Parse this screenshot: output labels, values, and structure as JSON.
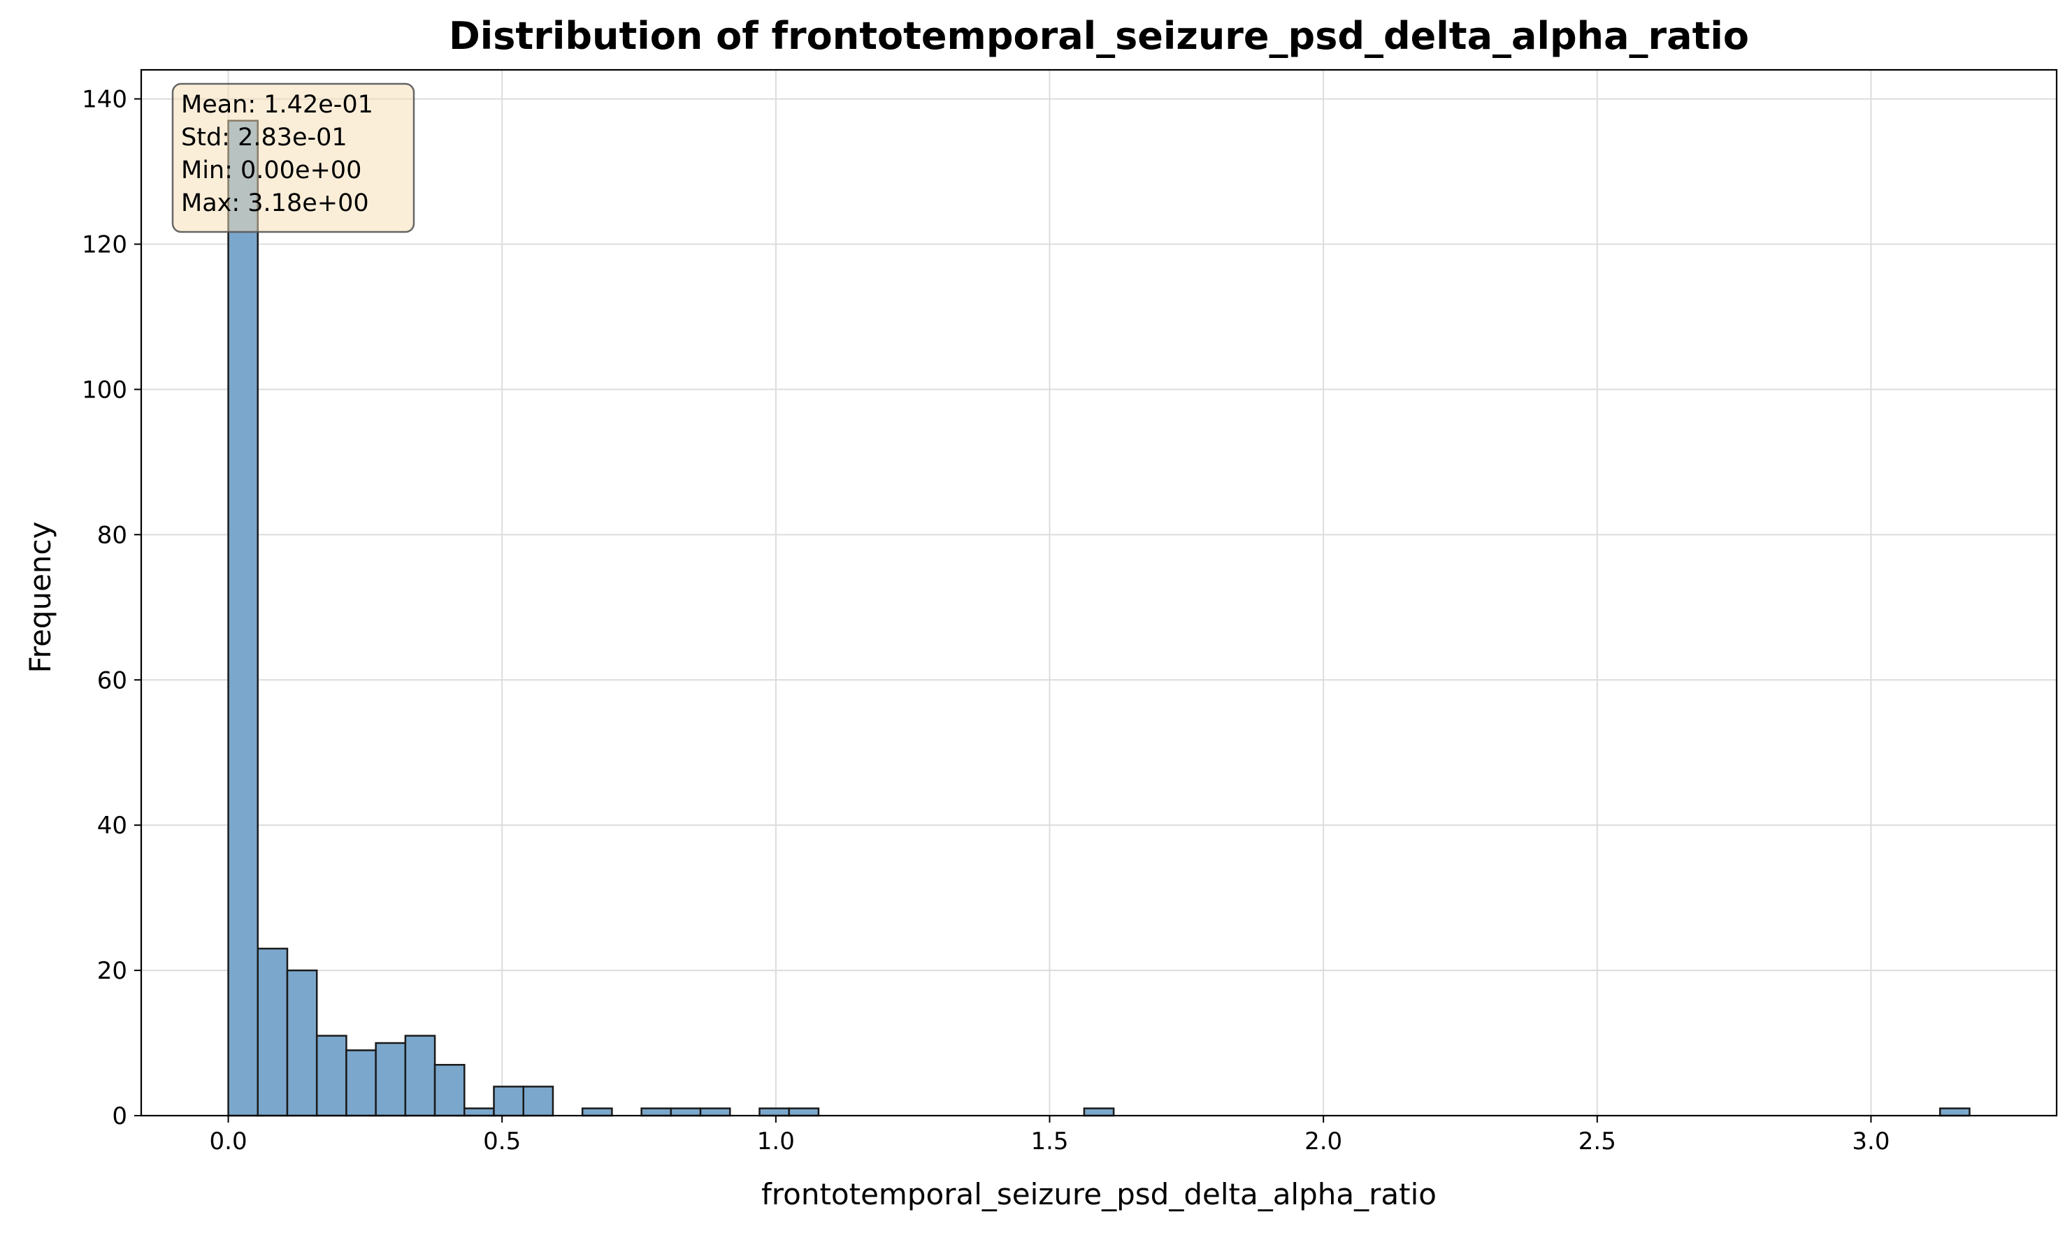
{
  "chart_data": {
    "type": "bar",
    "title": "Distribution of frontotemporal_seizure_psd_delta_alpha_ratio",
    "xlabel": "frontotemporal_seizure_psd_delta_alpha_ratio",
    "ylabel": "Frequency",
    "xlim": [
      -0.159,
      3.339
    ],
    "ylim": [
      0,
      144
    ],
    "xticks": [
      0.0,
      0.5,
      1.0,
      1.5,
      2.0,
      2.5,
      3.0
    ],
    "xtick_labels": [
      "0.0",
      "0.5",
      "1.0",
      "1.5",
      "2.0",
      "2.5",
      "3.0"
    ],
    "yticks": [
      0,
      20,
      40,
      60,
      80,
      100,
      120,
      140
    ],
    "ytick_labels": [
      "0",
      "20",
      "40",
      "60",
      "80",
      "100",
      "120",
      "140"
    ],
    "grid": true,
    "bins": {
      "start": 0.0,
      "end": 3.18,
      "count": 59,
      "counts": [
        137,
        23,
        20,
        11,
        9,
        10,
        11,
        7,
        1,
        4,
        4,
        0,
        1,
        0,
        1,
        1,
        1,
        0,
        1,
        1,
        0,
        0,
        0,
        0,
        0,
        0,
        0,
        0,
        0,
        1,
        0,
        0,
        0,
        0,
        0,
        0,
        0,
        0,
        0,
        0,
        0,
        0,
        0,
        0,
        0,
        0,
        0,
        0,
        0,
        0,
        0,
        0,
        0,
        0,
        0,
        0,
        0,
        0,
        1
      ]
    },
    "bar_color": "#7ba7cc",
    "bar_edge_color": "#1a1a1a",
    "stats": {
      "mean": "Mean: 1.42e-01",
      "std": "Std: 2.83e-01",
      "min": "Min: 0.00e+00",
      "max": "Max: 3.18e+00"
    },
    "stats_box_color": "#f5deb3"
  }
}
